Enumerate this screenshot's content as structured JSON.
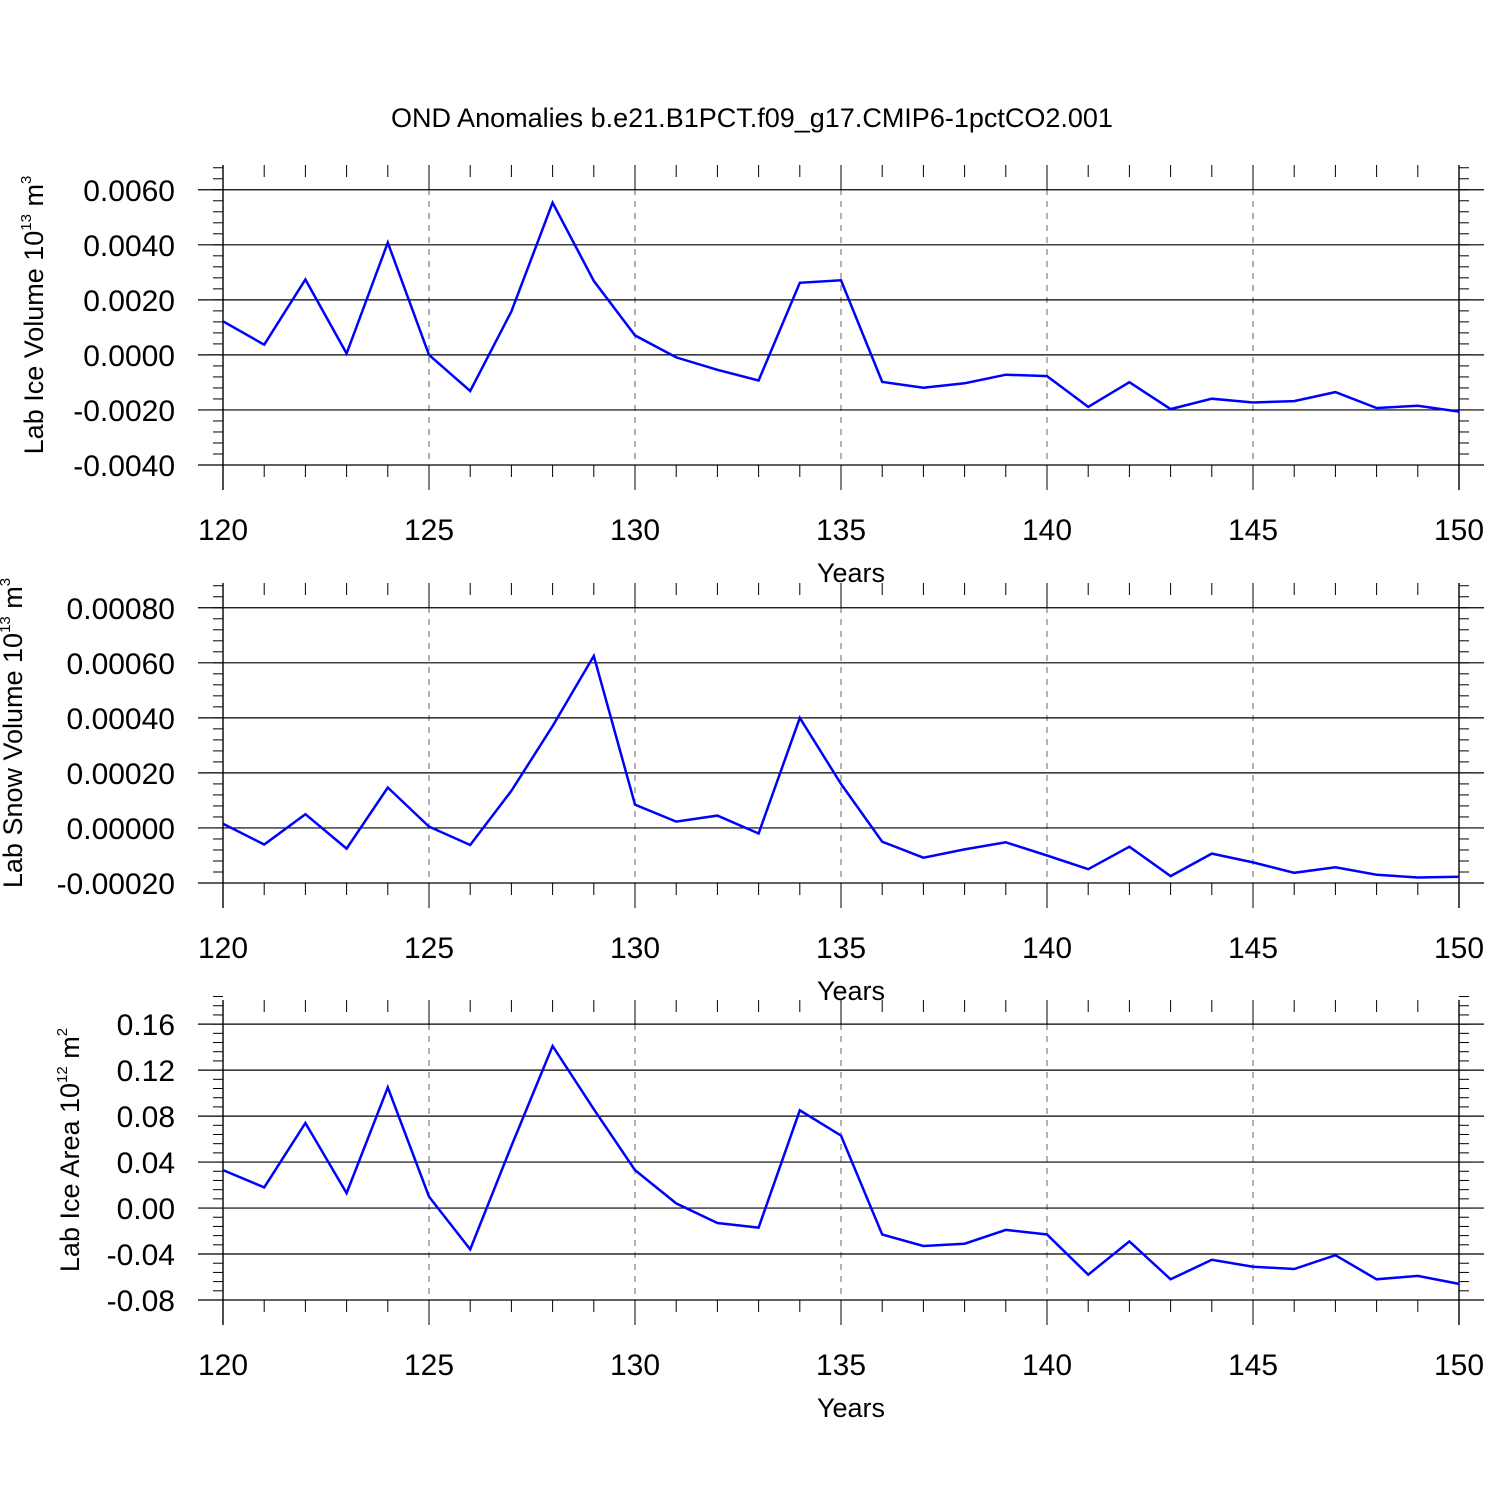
{
  "title": "OND Anomalies b.e21.B1PCT.f09_g17.CMIP6-1pctCO2.001",
  "line_color": "#0000ff",
  "chart_data": [
    {
      "type": "line",
      "ylabel_prefix": "Lab Ice Volume 10",
      "ylabel_exp": "13",
      "ylabel_unit": " m",
      "ylabel_unit_exp": "3",
      "xlabel": "Years",
      "xlim": [
        120,
        150
      ],
      "ylim": [
        -0.004,
        0.0069
      ],
      "yticks": [
        -0.004,
        -0.002,
        0.0,
        0.002,
        0.004,
        0.006
      ],
      "ytick_labels": [
        "-0.0040",
        "-0.0020",
        "0.0000",
        "0.0020",
        "0.0040",
        "0.0060"
      ],
      "ymin_step": 0.0004,
      "xticks": [
        120,
        125,
        130,
        135,
        140,
        145,
        150
      ],
      "xtick_labels": [
        "120",
        "125",
        "130",
        "135",
        "140",
        "145",
        "150"
      ],
      "x": [
        120,
        121,
        122,
        123,
        124,
        125,
        126,
        127,
        128,
        129,
        130,
        131,
        132,
        133,
        134,
        135,
        136,
        137,
        138,
        139,
        140,
        141,
        142,
        143,
        144,
        145,
        146,
        147,
        148,
        149,
        150
      ],
      "values": [
        0.00122,
        0.00037,
        0.00274,
        5e-05,
        0.00408,
        0.0,
        -0.00131,
        0.00158,
        0.00553,
        0.00269,
        0.00071,
        -9e-05,
        -0.00054,
        -0.00093,
        0.00262,
        0.00271,
        -0.00098,
        -0.00119,
        -0.00103,
        -0.00072,
        -0.00077,
        -0.00189,
        -0.00099,
        -0.00197,
        -0.00159,
        -0.00173,
        -0.00168,
        -0.00135,
        -0.00193,
        -0.00185,
        -0.00206
      ]
    },
    {
      "type": "line",
      "ylabel_prefix": "Lab Snow Volume 10",
      "ylabel_exp": "13",
      "ylabel_unit": " m",
      "ylabel_unit_exp": "3",
      "xlabel": "Years",
      "xlim": [
        120,
        150
      ],
      "ylim": [
        -0.0002,
        0.00089
      ],
      "yticks": [
        -0.0002,
        0.0,
        0.0002,
        0.0004,
        0.0006,
        0.0008
      ],
      "ytick_labels": [
        "-0.00020",
        "0.00000",
        "0.00020",
        "0.00040",
        "0.00060",
        "0.00080"
      ],
      "ymin_step": 4e-05,
      "xticks": [
        120,
        125,
        130,
        135,
        140,
        145,
        150
      ],
      "xtick_labels": [
        "120",
        "125",
        "130",
        "135",
        "140",
        "145",
        "150"
      ],
      "x": [
        120,
        121,
        122,
        123,
        124,
        125,
        126,
        127,
        128,
        129,
        130,
        131,
        132,
        133,
        134,
        135,
        136,
        137,
        138,
        139,
        140,
        141,
        142,
        143,
        144,
        145,
        146,
        147,
        148,
        149,
        150
      ],
      "values": [
        1.5e-05,
        -6e-05,
        5e-05,
        -7.5e-05,
        0.000147,
        5e-06,
        -6.2e-05,
        0.000135,
        0.00037,
        0.000625,
        8.5e-05,
        2.3e-05,
        4.5e-05,
        -2e-05,
        0.0004,
        0.00016,
        -5e-05,
        -0.000108,
        -7.8e-05,
        -5.2e-05,
        -0.0001,
        -0.00015,
        -6.8e-05,
        -0.000175,
        -9.3e-05,
        -0.000125,
        -0.000163,
        -0.000143,
        -0.00017,
        -0.00018,
        -0.000177
      ]
    },
    {
      "type": "line",
      "ylabel_prefix": "Lab Ice Area 10",
      "ylabel_exp": "12",
      "ylabel_unit": " m",
      "ylabel_unit_exp": "2",
      "xlabel": "Years",
      "xlim": [
        120,
        150
      ],
      "ylim": [
        -0.08,
        0.181
      ],
      "yticks": [
        -0.08,
        -0.04,
        0.0,
        0.04,
        0.08,
        0.12,
        0.16
      ],
      "ytick_labels": [
        "-0.08",
        "-0.04",
        "0.00",
        "0.04",
        "0.08",
        "0.12",
        "0.16"
      ],
      "ymin_step": 0.008,
      "xticks": [
        120,
        125,
        130,
        135,
        140,
        145,
        150
      ],
      "xtick_labels": [
        "120",
        "125",
        "130",
        "135",
        "140",
        "145",
        "150"
      ],
      "x": [
        120,
        121,
        122,
        123,
        124,
        125,
        126,
        127,
        128,
        129,
        130,
        131,
        132,
        133,
        134,
        135,
        136,
        137,
        138,
        139,
        140,
        141,
        142,
        143,
        144,
        145,
        146,
        147,
        148,
        149,
        150
      ],
      "values": [
        0.033,
        0.018,
        0.074,
        0.013,
        0.105,
        0.01,
        -0.036,
        0.054,
        0.141,
        0.086,
        0.033,
        0.004,
        -0.013,
        -0.017,
        0.085,
        0.063,
        -0.023,
        -0.033,
        -0.031,
        -0.019,
        -0.023,
        -0.058,
        -0.029,
        -0.062,
        -0.045,
        -0.051,
        -0.053,
        -0.041,
        -0.062,
        -0.059,
        -0.066
      ]
    }
  ]
}
